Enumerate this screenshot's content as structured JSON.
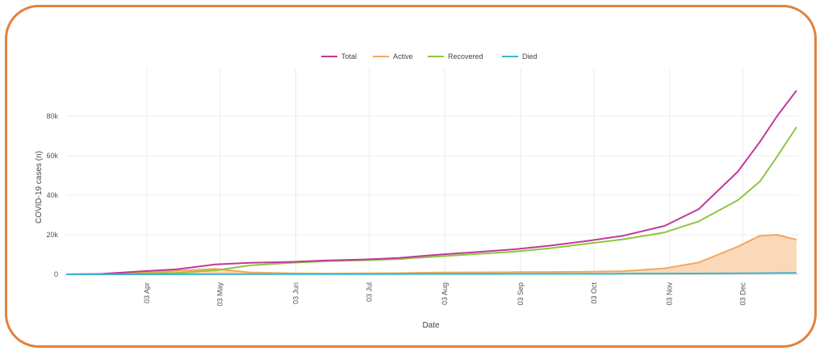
{
  "chart_data": {
    "type": "line",
    "xlabel": "Date",
    "ylabel": "COVID-19 cases (n)",
    "ylim": [
      0,
      100000
    ],
    "yticks": [
      {
        "value": 0,
        "label": "0"
      },
      {
        "value": 20000,
        "label": "20k"
      },
      {
        "value": 40000,
        "label": "40k"
      },
      {
        "value": 60000,
        "label": "60k"
      },
      {
        "value": 80000,
        "label": "80k"
      }
    ],
    "xticks": [
      {
        "date": "2020-04-03",
        "label": "03 Apr"
      },
      {
        "date": "2020-05-03",
        "label": "03 May"
      },
      {
        "date": "2020-06-03",
        "label": "03 Jun"
      },
      {
        "date": "2020-07-03",
        "label": "03 Jul"
      },
      {
        "date": "2020-08-03",
        "label": "03 Aug"
      },
      {
        "date": "2020-09-03",
        "label": "03 Sep"
      },
      {
        "date": "2020-10-03",
        "label": "03 Oct"
      },
      {
        "date": "2020-11-03",
        "label": "03 Nov"
      },
      {
        "date": "2020-12-03",
        "label": "03 Dec"
      }
    ],
    "xlim": [
      "2020-03-01",
      "2020-12-26"
    ],
    "grid": true,
    "legend_position": "top",
    "dates": [
      "2020-03-01",
      "2020-03-15",
      "2020-04-01",
      "2020-04-15",
      "2020-05-01",
      "2020-05-15",
      "2020-06-01",
      "2020-06-15",
      "2020-07-01",
      "2020-07-15",
      "2020-08-01",
      "2020-08-15",
      "2020-09-01",
      "2020-09-15",
      "2020-10-01",
      "2020-10-15",
      "2020-11-01",
      "2020-11-15",
      "2020-12-01",
      "2020-12-10",
      "2020-12-17",
      "2020-12-25"
    ],
    "series": [
      {
        "name": "Total",
        "color": "#c2389b",
        "fill": false,
        "values": [
          0,
          200,
          1500,
          2500,
          5000,
          5800,
          6300,
          7000,
          7500,
          8300,
          10000,
          11200,
          12700,
          14500,
          17000,
          19500,
          24500,
          33000,
          52000,
          67000,
          80000,
          93000
        ]
      },
      {
        "name": "Active",
        "color": "#f0a860",
        "fill": true,
        "fill_color": "#fbd9b8",
        "values": [
          0,
          150,
          800,
          1800,
          2800,
          1000,
          500,
          400,
          500,
          600,
          900,
          1000,
          1100,
          1200,
          1300,
          1600,
          3000,
          6000,
          14000,
          19500,
          20000,
          17500
        ]
      },
      {
        "name": "Recovered",
        "color": "#8dc63f",
        "fill": false,
        "values": [
          0,
          0,
          400,
          700,
          2000,
          4500,
          5800,
          6600,
          7100,
          7700,
          9100,
          10200,
          11500,
          13200,
          15600,
          17700,
          21200,
          26800,
          37500,
          47000,
          59500,
          74500
        ]
      },
      {
        "name": "Died",
        "color": "#3cb4cf",
        "fill": false,
        "values": [
          0,
          0,
          20,
          50,
          80,
          100,
          110,
          120,
          130,
          140,
          160,
          180,
          200,
          230,
          260,
          300,
          350,
          420,
          520,
          580,
          640,
          700
        ]
      }
    ]
  }
}
